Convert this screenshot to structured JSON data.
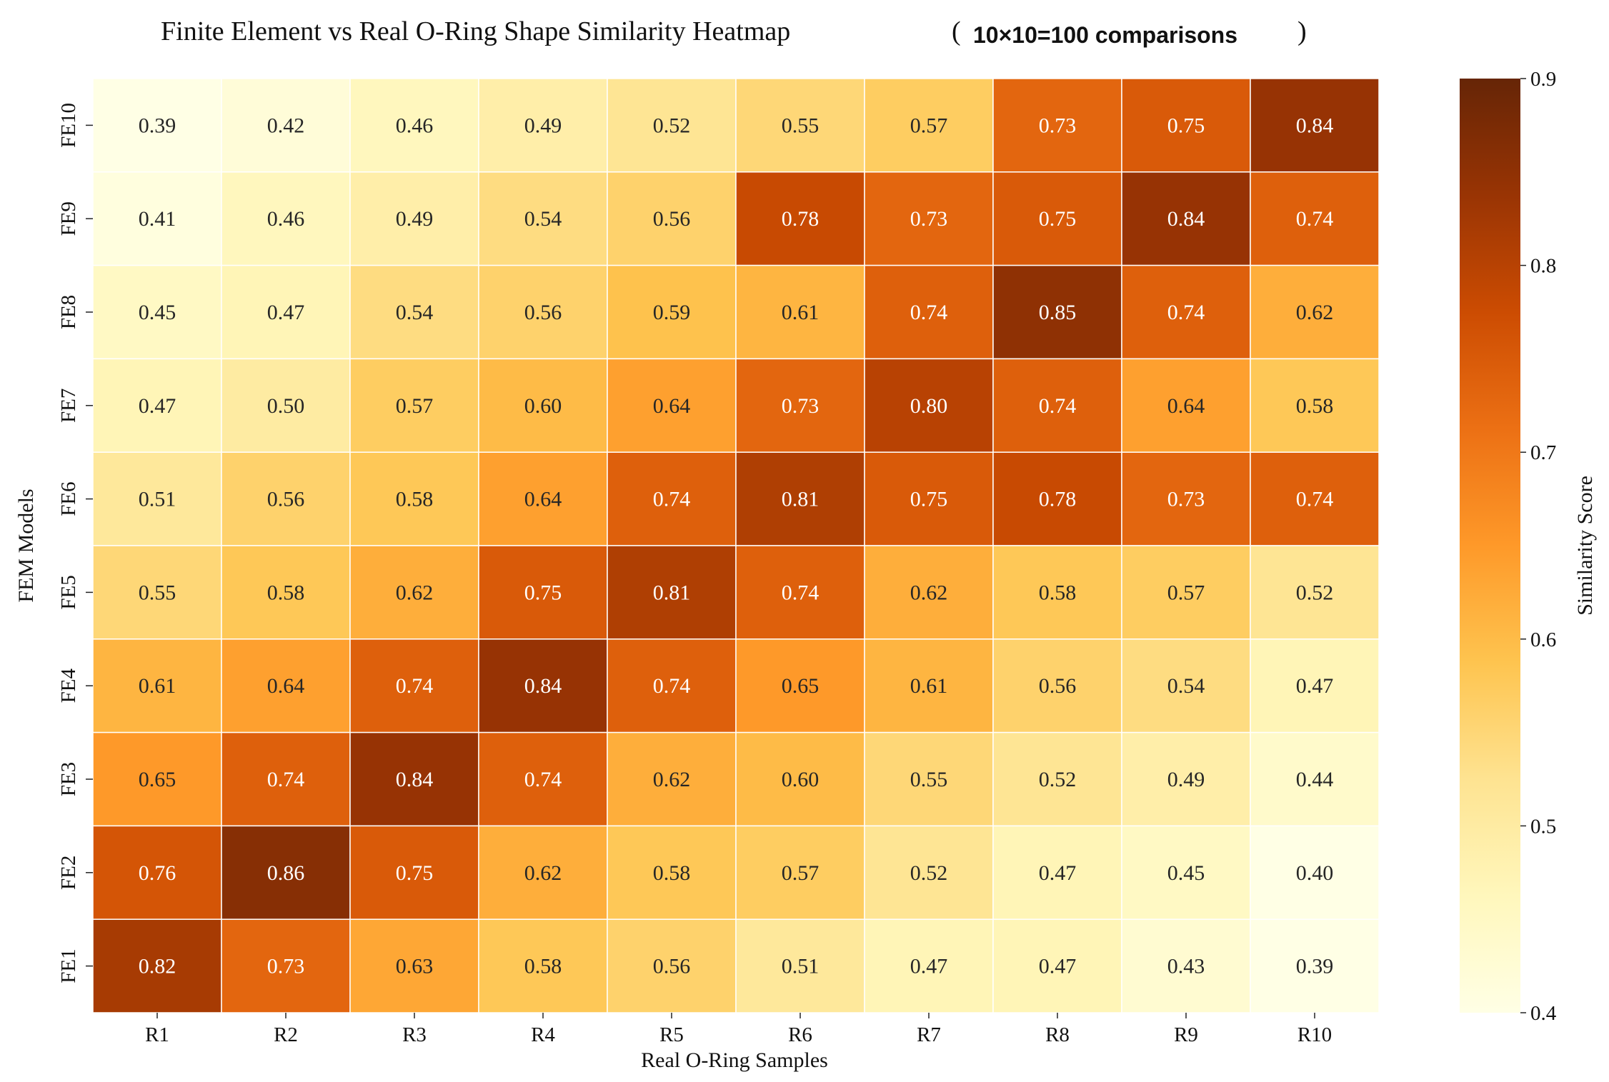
{
  "chart_data": {
    "type": "heatmap",
    "title": "Finite Element vs Real O-Ring Shape Similarity Heatmap",
    "title_note": "10×10=100 comparisons",
    "xlabel": "Real O-Ring Samples",
    "ylabel": "FEM Models",
    "colorbar_label": "Similarity Score",
    "colormap": "YlOrBr",
    "vmin": 0.4,
    "vmax": 0.9,
    "colorbar_ticks": [
      "0.4",
      "0.5",
      "0.6",
      "0.7",
      "0.8",
      "0.9"
    ],
    "x_categories": [
      "R1",
      "R2",
      "R3",
      "R4",
      "R5",
      "R6",
      "R7",
      "R8",
      "R9",
      "R10"
    ],
    "y_categories_top_to_bottom": [
      "FE10",
      "FE9",
      "FE8",
      "FE7",
      "FE6",
      "FE5",
      "FE4",
      "FE3",
      "FE2",
      "FE1"
    ],
    "matrix_top_to_bottom": [
      [
        0.39,
        0.42,
        0.46,
        0.49,
        0.52,
        0.55,
        0.57,
        0.73,
        0.75,
        0.84
      ],
      [
        0.41,
        0.46,
        0.49,
        0.54,
        0.56,
        0.78,
        0.73,
        0.75,
        0.84,
        0.74
      ],
      [
        0.45,
        0.47,
        0.54,
        0.56,
        0.59,
        0.61,
        0.74,
        0.85,
        0.74,
        0.62
      ],
      [
        0.47,
        0.5,
        0.57,
        0.6,
        0.64,
        0.73,
        0.8,
        0.74,
        0.64,
        0.58
      ],
      [
        0.51,
        0.56,
        0.58,
        0.64,
        0.74,
        0.81,
        0.75,
        0.78,
        0.73,
        0.74
      ],
      [
        0.55,
        0.58,
        0.62,
        0.75,
        0.81,
        0.74,
        0.62,
        0.58,
        0.57,
        0.52
      ],
      [
        0.61,
        0.64,
        0.74,
        0.84,
        0.74,
        0.65,
        0.61,
        0.56,
        0.54,
        0.47
      ],
      [
        0.65,
        0.74,
        0.84,
        0.74,
        0.62,
        0.6,
        0.55,
        0.52,
        0.49,
        0.44
      ],
      [
        0.76,
        0.86,
        0.75,
        0.62,
        0.58,
        0.57,
        0.52,
        0.47,
        0.45,
        0.4
      ],
      [
        0.82,
        0.73,
        0.63,
        0.58,
        0.56,
        0.51,
        0.47,
        0.47,
        0.43,
        0.39
      ]
    ],
    "cell_label_format": "2 decimals",
    "grid": false,
    "legend": "colorbar-right"
  }
}
